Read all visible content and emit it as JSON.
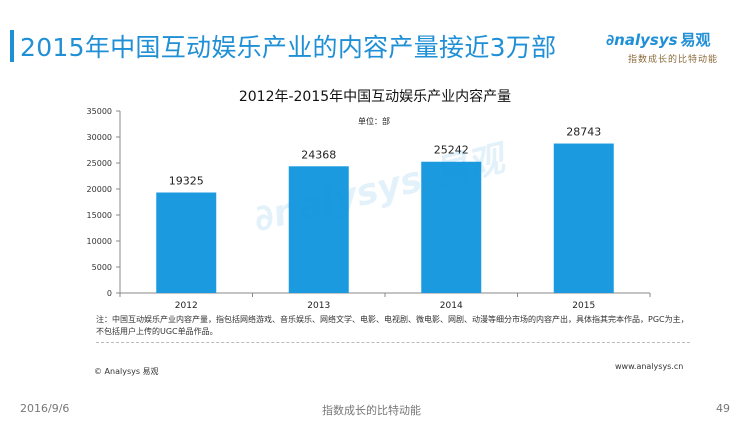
{
  "header": {
    "title": "2015年中国互动娱乐产业的内容产量接近3万部",
    "logo_text": "nalysys",
    "logo_cn": "易观",
    "logo_tagline": "指数成长的比特动能",
    "brand_color": "#1f8fd6"
  },
  "chart_data": {
    "type": "bar",
    "title": "2012年-2015年中国互动娱乐产业内容产量",
    "unit_label": "单位：部",
    "categories": [
      "2012",
      "2013",
      "2014",
      "2015"
    ],
    "values": [
      19325,
      24368,
      25242,
      28743
    ],
    "ylim": [
      0,
      35000
    ],
    "yticks": [
      0,
      5000,
      10000,
      15000,
      20000,
      25000,
      30000,
      35000
    ],
    "bar_color": "#1b9ae0",
    "grid": false,
    "legend": "none"
  },
  "note": "注：中国互动娱乐产业内容产量，指包括网络游戏、音乐娱乐、网络文学、电影、电视剧、微电影、网剧、动漫等细分市场的内容产出，具体指其完本作品，PGC为主，不包括用户上传的UGC单品作品。",
  "copyright": "© Analysys 易观",
  "website": "www.analysys.cn",
  "footer": {
    "date": "2016/9/6",
    "slogan": "指数成长的比特动能",
    "page": "49"
  }
}
